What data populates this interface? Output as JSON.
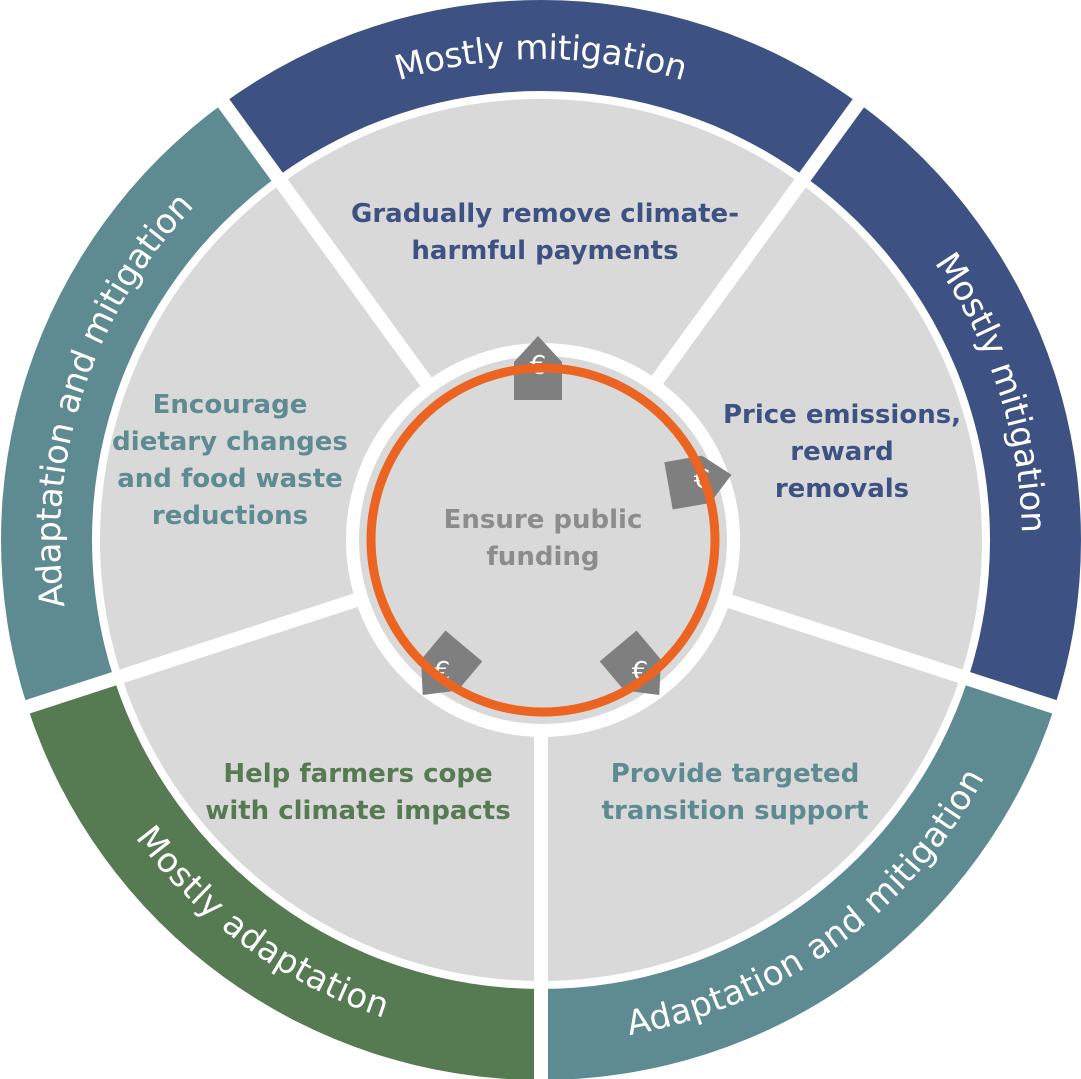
{
  "bands": [
    {
      "label": "Mostly mitigation",
      "color": "#3d5283"
    },
    {
      "label": "Mostly mitigation",
      "color": "#3d5283"
    },
    {
      "label": "Adaptation and mitigation",
      "color": "#5e8a91"
    },
    {
      "label": "Mostly adaptation",
      "color": "#567a52"
    },
    {
      "label": "Adaptation and mitigation",
      "color": "#5e8a91"
    }
  ],
  "sectors": [
    {
      "lines": [
        "Gradually remove climate-",
        "harmful payments"
      ],
      "color": "#3d5283"
    },
    {
      "lines": [
        "Price emissions,",
        "reward",
        "removals"
      ],
      "color": "#3d5283"
    },
    {
      "lines": [
        "Provide targeted",
        "transition support"
      ],
      "color": "#5e8a91"
    },
    {
      "lines": [
        "Help farmers cope",
        "with climate impacts"
      ],
      "color": "#567a52"
    },
    {
      "lines": [
        "Encourage",
        "dietary changes",
        "and food waste",
        "reductions"
      ],
      "color": "#5e8a91"
    }
  ],
  "center": {
    "lines": [
      "Ensure public",
      "funding"
    ],
    "color": "#8c8c8c"
  },
  "arrows": [
    "€",
    "€",
    "€",
    "€"
  ]
}
